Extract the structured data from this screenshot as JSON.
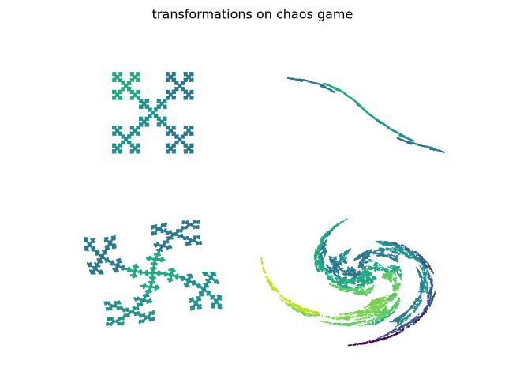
{
  "title": "transformations on chaos game"
}
